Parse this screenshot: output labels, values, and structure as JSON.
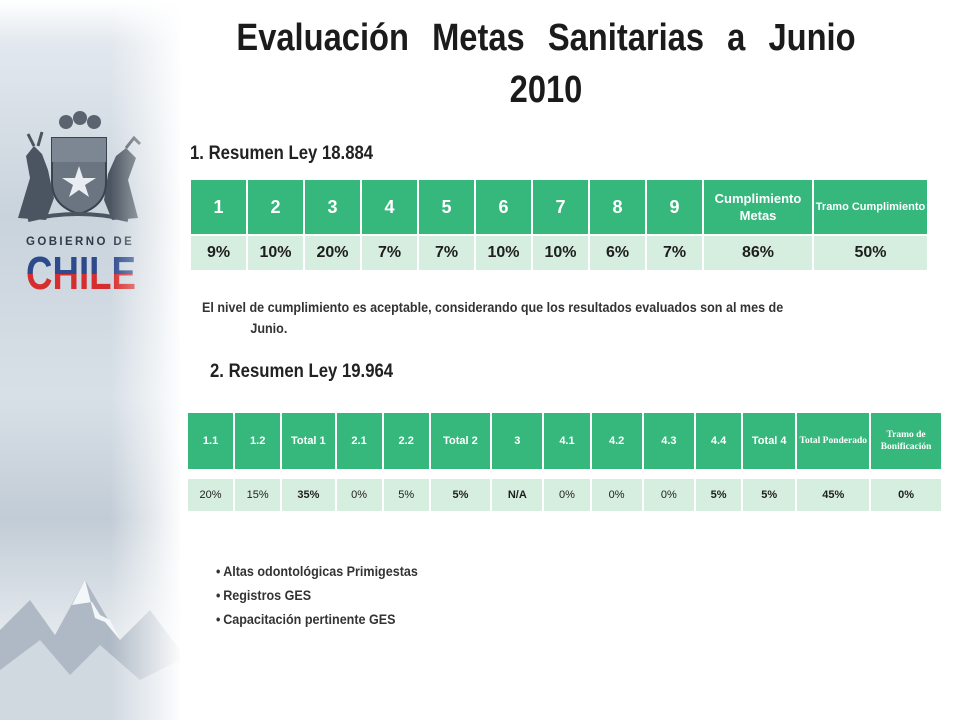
{
  "sidebar": {
    "gobierno_label": "GOBIERNO DE",
    "chile_label": "CHILE",
    "colors": {
      "blue": "#2c4a8c",
      "red": "#d62e2e"
    }
  },
  "title": {
    "line1": "Evaluación Metas Sanitarias a Junio",
    "line2": "2010"
  },
  "section1": {
    "heading": "1. Resumen Ley 18.884",
    "table": {
      "headers": [
        "1",
        "2",
        "3",
        "4",
        "5",
        "6",
        "7",
        "8",
        "9",
        "Cumplimiento Metas",
        "Tramo Cumplimiento"
      ],
      "values": [
        "9%",
        "10%",
        "20%",
        "7%",
        "7%",
        "10%",
        "10%",
        "6%",
        "7%",
        "86%",
        "50%"
      ]
    },
    "note": {
      "line1": "El nivel de cumplimiento es aceptable, considerando que los resultados evaluados son al mes de",
      "line2": "Junio."
    }
  },
  "section2": {
    "heading": "2. Resumen Ley 19.964",
    "table": {
      "headers": [
        "1.1",
        "1.2",
        "Total 1",
        "2.1",
        "2.2",
        "Total 2",
        "3",
        "4.1",
        "4.2",
        "4.3",
        "4.4",
        "Total 4",
        "Total Ponderado",
        "Tramo de Bonificación"
      ],
      "values": [
        "20%",
        "15%",
        "35%",
        "0%",
        "5%",
        "5%",
        "N/A",
        "0%",
        "0%",
        "0%",
        "5%",
        "5%",
        "45%",
        "0%"
      ]
    }
  },
  "bullets": {
    "marker": "•",
    "items": [
      "Altas odontológicas Primigestas",
      "Registros GES",
      "Capacitación pertinente GES"
    ]
  },
  "table_colors": {
    "header_bg": "#36b77c",
    "value_bg": "#d6eedf"
  }
}
